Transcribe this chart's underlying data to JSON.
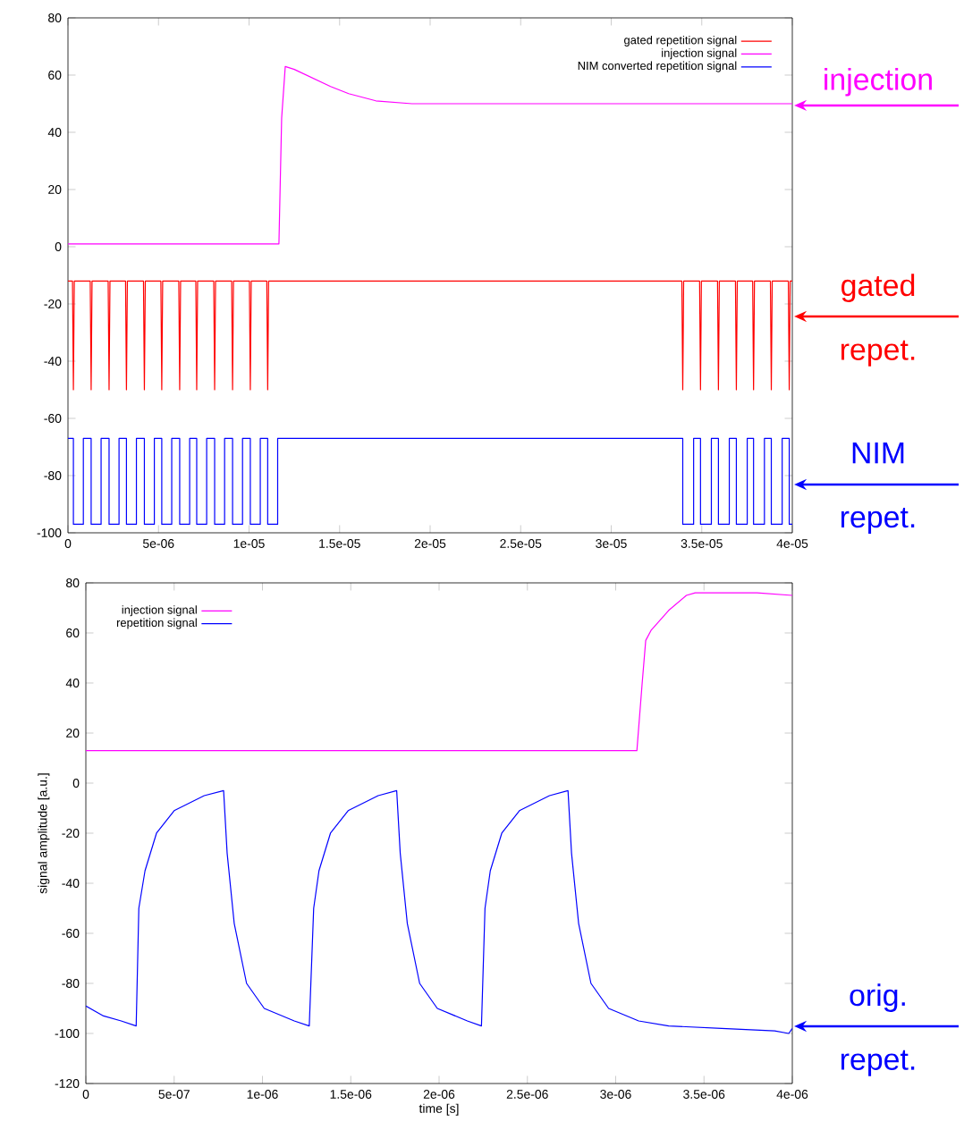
{
  "chart_data": [
    {
      "type": "line",
      "xlim": [
        0,
        4e-05
      ],
      "ylim": [
        -100,
        80
      ],
      "xticks": [
        0,
        {
          "value": 5e-06,
          "label": "5e-06"
        },
        {
          "value": 1e-05,
          "label": "1e-05"
        },
        {
          "value": 1.5e-05,
          "label": "1.5e-05"
        },
        {
          "value": 2e-05,
          "label": "2e-05"
        },
        {
          "value": 2.5e-05,
          "label": "2.5e-05"
        },
        {
          "value": 3e-05,
          "label": "3e-05"
        },
        {
          "value": 3.5e-05,
          "label": "3.5e-05"
        },
        {
          "value": 4e-05,
          "label": "4e-05"
        }
      ],
      "yticks": [
        -100,
        -80,
        -60,
        -40,
        -20,
        0,
        20,
        40,
        60,
        80
      ],
      "legend": "top right",
      "series": [
        {
          "name": "gated repetition signal",
          "color": "#ff0000",
          "x": [
            0,
            2.5e-07,
            3e-07,
            3.5e-07,
            1.23e-06,
            1.28e-06,
            1.33e-06,
            2.22e-06,
            2.27e-06,
            2.32e-06,
            3.18e-06,
            3.23e-06,
            3.28e-06,
            4.17e-06,
            4.22e-06,
            4.27e-06,
            5.13e-06,
            5.18e-06,
            5.23e-06,
            6.12e-06,
            6.17e-06,
            6.22e-06,
            7.06e-06,
            7.11e-06,
            7.16e-06,
            8.05e-06,
            8.1e-06,
            8.15e-06,
            9.04e-06,
            9.09e-06,
            9.14e-06,
            1.002e-05,
            1.007e-05,
            1.012e-05,
            1.098e-05,
            1.103e-05,
            1.108e-05,
            3.39e-05,
            3.395e-05,
            3.4e-05,
            3.488e-05,
            3.493e-05,
            3.498e-05,
            3.587e-05,
            3.592e-05,
            3.597e-05,
            3.686e-05,
            3.691e-05,
            3.696e-05,
            3.781e-05,
            3.786e-05,
            3.791e-05,
            3.879e-05,
            3.884e-05,
            3.889e-05,
            3.978e-05,
            3.983e-05,
            3.988e-05,
            4e-05
          ],
          "values": [
            -12,
            -12,
            -50,
            -12,
            -12,
            -50,
            -12,
            -12,
            -50,
            -12,
            -12,
            -50,
            -12,
            -12,
            -50,
            -12,
            -12,
            -50,
            -12,
            -12,
            -50,
            -12,
            -12,
            -50,
            -12,
            -12,
            -50,
            -12,
            -12,
            -50,
            -12,
            -12,
            -50,
            -12,
            -12,
            -50,
            -12,
            -12,
            -50,
            -12,
            -12,
            -50,
            -12,
            -12,
            -50,
            -12,
            -12,
            -50,
            -12,
            -12,
            -50,
            -12,
            -12,
            -50,
            -12,
            -12,
            -50,
            -12,
            -12
          ]
        },
        {
          "name": "injection signal",
          "color": "#ff00ff",
          "x": [
            0,
            1.165e-05,
            1.18e-05,
            1.2e-05,
            1.25e-05,
            1.35e-05,
            1.45e-05,
            1.55e-05,
            1.7e-05,
            1.9e-05,
            2.2e-05,
            2.6e-05,
            3e-05,
            3.5e-05,
            4e-05
          ],
          "values": [
            1,
            1,
            45,
            63,
            62,
            59,
            56,
            53.5,
            51,
            50,
            50,
            50,
            50,
            50,
            50
          ]
        },
        {
          "name": "NIM converted repetition signal",
          "color": "#0000ff",
          "x": [
            0,
            3e-07,
            3e-07,
            8.5e-07,
            8.5e-07,
            1.28e-06,
            1.28e-06,
            1.83e-06,
            1.83e-06,
            2.27e-06,
            2.27e-06,
            2.82e-06,
            2.82e-06,
            3.23e-06,
            3.23e-06,
            3.78e-06,
            3.78e-06,
            4.22e-06,
            4.22e-06,
            4.77e-06,
            4.77e-06,
            5.18e-06,
            5.18e-06,
            5.73e-06,
            5.73e-06,
            6.17e-06,
            6.17e-06,
            6.72e-06,
            6.72e-06,
            7.11e-06,
            7.11e-06,
            7.66e-06,
            7.66e-06,
            8.1e-06,
            8.1e-06,
            8.65e-06,
            8.65e-06,
            9.09e-06,
            9.09e-06,
            9.64e-06,
            9.64e-06,
            1.007e-05,
            1.007e-05,
            1.062e-05,
            1.062e-05,
            1.103e-05,
            1.103e-05,
            1.158e-05,
            1.158e-05,
            3.395e-05,
            3.395e-05,
            3.455e-05,
            3.455e-05,
            3.493e-05,
            3.493e-05,
            3.553e-05,
            3.553e-05,
            3.592e-05,
            3.592e-05,
            3.652e-05,
            3.652e-05,
            3.691e-05,
            3.691e-05,
            3.751e-05,
            3.751e-05,
            3.786e-05,
            3.786e-05,
            3.846e-05,
            3.846e-05,
            3.884e-05,
            3.884e-05,
            3.944e-05,
            3.944e-05,
            3.983e-05,
            3.983e-05,
            4e-05
          ],
          "values": [
            -67,
            -67,
            -97,
            -97,
            -67,
            -67,
            -97,
            -97,
            -67,
            -67,
            -97,
            -97,
            -67,
            -67,
            -97,
            -97,
            -67,
            -67,
            -97,
            -97,
            -67,
            -67,
            -97,
            -97,
            -67,
            -67,
            -97,
            -97,
            -67,
            -67,
            -97,
            -97,
            -67,
            -67,
            -97,
            -97,
            -67,
            -67,
            -97,
            -97,
            -67,
            -67,
            -97,
            -97,
            -67,
            -67,
            -97,
            -97,
            -67,
            -67,
            -97,
            -97,
            -67,
            -67,
            -97,
            -97,
            -67,
            -67,
            -97,
            -97,
            -67,
            -67,
            -97,
            -97,
            -67,
            -67,
            -97,
            -97,
            -67,
            -67,
            -97,
            -97,
            -67,
            -67,
            -97,
            -97
          ]
        }
      ],
      "annotations": [
        "injection",
        "gated repet.",
        "NIM repet."
      ]
    },
    {
      "type": "line",
      "xlabel": "time [s]",
      "ylabel": "signal amplitude [a.u.]",
      "xlim": [
        0,
        4e-06
      ],
      "ylim": [
        -120,
        80
      ],
      "xticks": [
        0,
        {
          "value": 5e-07,
          "label": "5e-07"
        },
        {
          "value": 1e-06,
          "label": "1e-06"
        },
        {
          "value": 1.5e-06,
          "label": "1.5e-06"
        },
        {
          "value": 2e-06,
          "label": "2e-06"
        },
        {
          "value": 2.5e-06,
          "label": "2.5e-06"
        },
        {
          "value": 3e-06,
          "label": "3e-06"
        },
        {
          "value": 3.5e-06,
          "label": "3.5e-06"
        },
        {
          "value": 4e-06,
          "label": "4e-06"
        }
      ],
      "yticks": [
        -120,
        -100,
        -80,
        -60,
        -40,
        -20,
        0,
        20,
        40,
        60,
        80
      ],
      "legend": "top left",
      "series": [
        {
          "name": "injection signal",
          "color": "#ff00ff",
          "x": [
            0,
            3.12e-06,
            3.15e-06,
            3.17e-06,
            3.2e-06,
            3.3e-06,
            3.4e-06,
            3.45e-06,
            3.8e-06,
            4e-06
          ],
          "values": [
            13,
            13,
            40,
            57,
            61,
            69,
            75,
            76,
            76,
            75
          ]
        },
        {
          "name": "repetition signal",
          "color": "#0000ff",
          "x": [
            0,
            1e-07,
            2e-07,
            2.85e-07,
            3e-07,
            3.35e-07,
            4e-07,
            5e-07,
            6.7e-07,
            7.8e-07,
            8e-07,
            8.4e-07,
            9.1e-07,
            1.01e-06,
            1.18e-06,
            1.265e-06,
            1.29e-06,
            1.32e-06,
            1.385e-06,
            1.485e-06,
            1.655e-06,
            1.76e-06,
            1.78e-06,
            1.82e-06,
            1.89e-06,
            1.99e-06,
            2.16e-06,
            2.24e-06,
            2.26e-06,
            2.29e-06,
            2.355e-06,
            2.455e-06,
            2.625e-06,
            2.73e-06,
            2.75e-06,
            2.79e-06,
            2.86e-06,
            2.96e-06,
            3.13e-06,
            3.3e-06,
            3.6e-06,
            3.9e-06,
            3.98e-06,
            4e-06
          ],
          "values": [
            -89,
            -93,
            -95,
            -97,
            -50,
            -35,
            -20,
            -11,
            -5,
            -3,
            -28,
            -56,
            -80,
            -90,
            -95,
            -97,
            -50,
            -35,
            -20,
            -11,
            -5,
            -3,
            -28,
            -56,
            -80,
            -90,
            -95,
            -97,
            -50,
            -35,
            -20,
            -11,
            -5,
            -3,
            -28,
            -56,
            -80,
            -90,
            -95,
            -97,
            -98,
            -99,
            -100,
            -98
          ]
        }
      ],
      "annotations": [
        "orig. repet."
      ]
    }
  ]
}
